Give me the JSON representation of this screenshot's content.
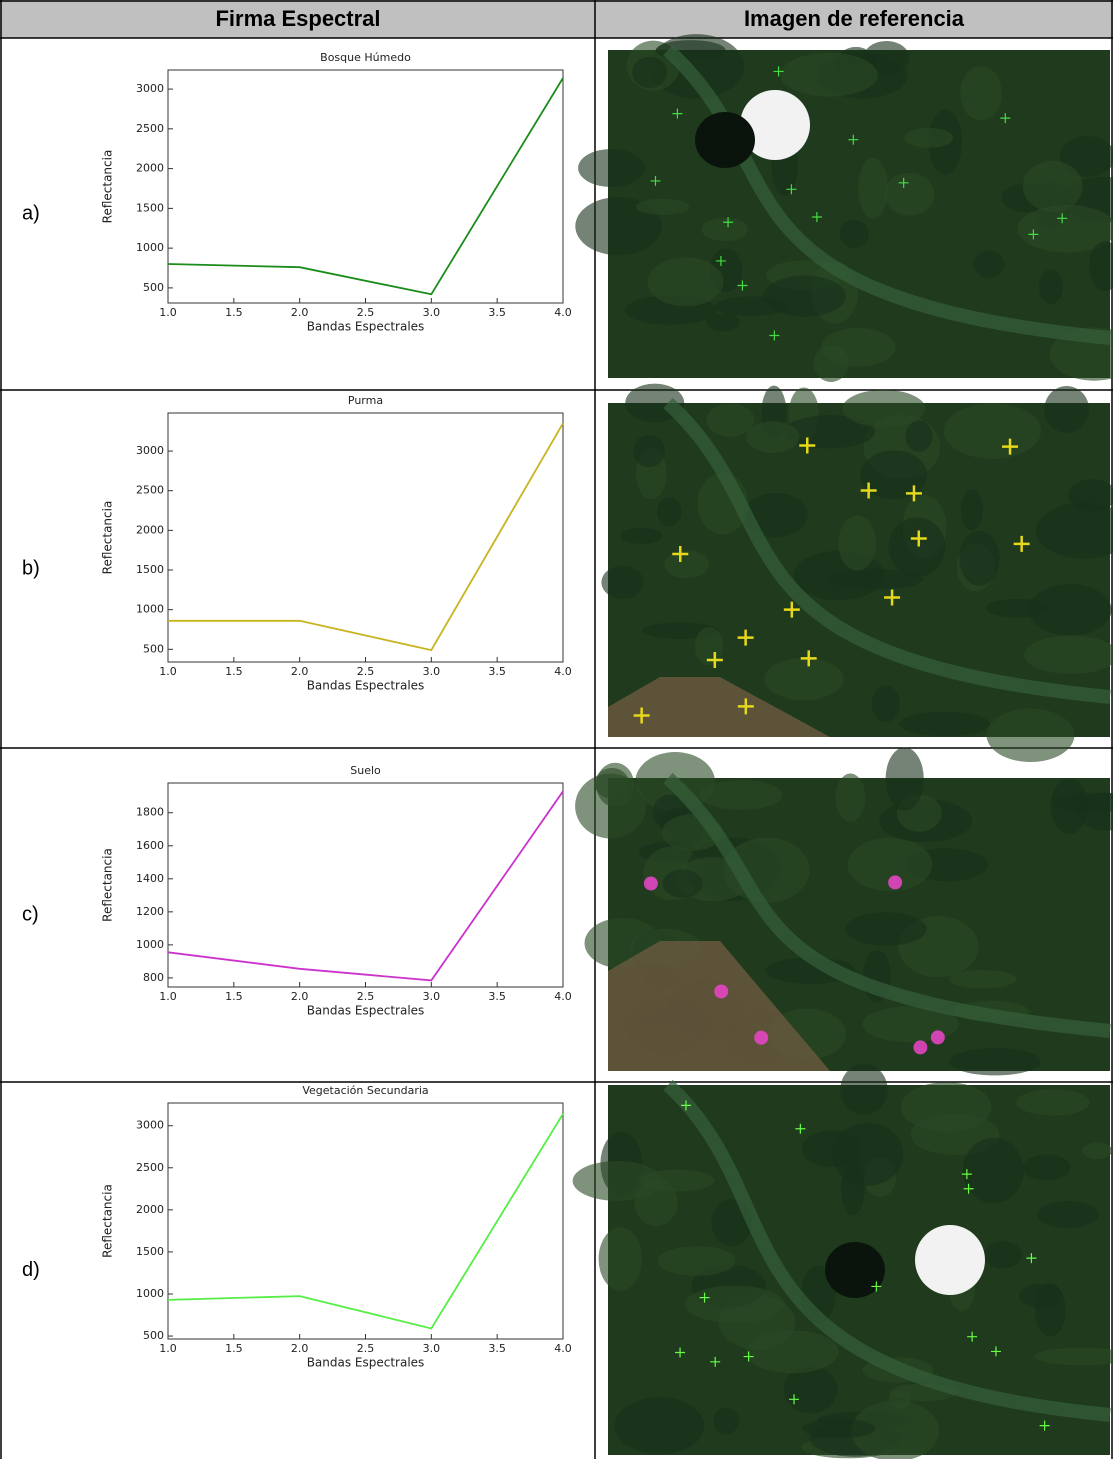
{
  "table": {
    "header": [
      "Firma Espectral",
      "Imagen de referencia"
    ],
    "rows": [
      "a)",
      "b)",
      "c)",
      "d)"
    ]
  },
  "chart_data": [
    {
      "type": "line",
      "title": "Bosque Húmedo",
      "xlabel": "Bandas Espectrales",
      "ylabel": "Reflectancia",
      "x": [
        1,
        2,
        3,
        4
      ],
      "values": [
        800,
        760,
        420,
        3140
      ],
      "color": "#1a8c1a",
      "xlim": [
        1,
        4
      ],
      "ylim": [
        310,
        3240
      ],
      "xticks": [
        {
          "value": 1,
          "label": "1.0"
        },
        1.5,
        {
          "value": 2,
          "label": "2.0"
        },
        2.5,
        {
          "value": 3,
          "label": "3.0"
        },
        3.5,
        {
          "value": 4,
          "label": "4.0"
        }
      ],
      "yticks": [
        500,
        1000,
        1500,
        2000,
        2500,
        3000
      ]
    },
    {
      "type": "line",
      "title": "Purma",
      "xlabel": "Bandas Espectrales",
      "ylabel": "Reflectancia",
      "x": [
        1,
        2,
        3,
        4
      ],
      "values": [
        860,
        860,
        490,
        3350
      ],
      "color": "#c8b41e",
      "xlim": [
        1,
        4
      ],
      "ylim": [
        340,
        3480
      ],
      "xticks": [
        {
          "value": 1,
          "label": "1.0"
        },
        1.5,
        {
          "value": 2,
          "label": "2.0"
        },
        2.5,
        {
          "value": 3,
          "label": "3.0"
        },
        3.5,
        {
          "value": 4,
          "label": "4.0"
        }
      ],
      "yticks": [
        500,
        1000,
        1500,
        2000,
        2500,
        3000
      ]
    },
    {
      "type": "line",
      "title": "Suelo",
      "xlabel": "Bandas Espectrales",
      "ylabel": "Reflectancia",
      "x": [
        1,
        2,
        3,
        4
      ],
      "values": [
        955,
        855,
        785,
        1930
      ],
      "color": "#cc33cc",
      "xlim": [
        1,
        4
      ],
      "ylim": [
        745,
        1980
      ],
      "xticks": [
        {
          "value": 1,
          "label": "1.0"
        },
        1.5,
        {
          "value": 2,
          "label": "2.0"
        },
        2.5,
        {
          "value": 3,
          "label": "3.0"
        },
        3.5,
        {
          "value": 4,
          "label": "4.0"
        }
      ],
      "yticks": [
        800,
        1000,
        1200,
        1400,
        1600,
        1800
      ]
    },
    {
      "type": "line",
      "title": "Vegetación Secundaria",
      "xlabel": "Bandas Espectrales",
      "ylabel": "Reflectancia",
      "x": [
        1,
        2,
        3,
        4
      ],
      "values": [
        930,
        975,
        590,
        3140
      ],
      "color": "#55ee44",
      "xlim": [
        1,
        4
      ],
      "ylim": [
        465,
        3270
      ],
      "xticks": [
        {
          "value": 1,
          "label": "1.0"
        },
        1.5,
        {
          "value": 2,
          "label": "2.0"
        },
        2.5,
        {
          "value": 3,
          "label": "3.0"
        },
        3.5,
        {
          "value": 4,
          "label": "4.0"
        }
      ],
      "yticks": [
        500,
        1000,
        1500,
        2000,
        2500,
        3000
      ]
    }
  ]
}
